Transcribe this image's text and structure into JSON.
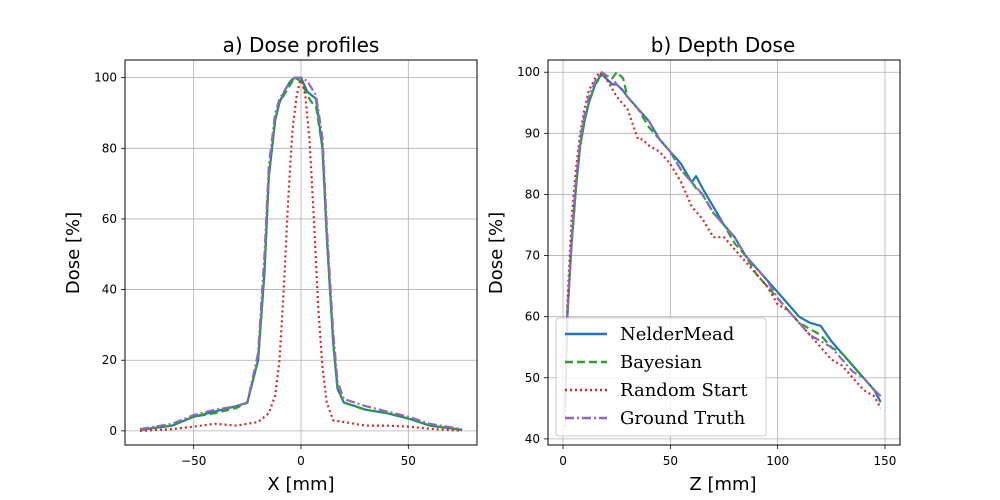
{
  "chart_data": [
    {
      "type": "line",
      "title": "a) Dose profiles",
      "xlabel": "X [mm]",
      "ylabel": "Dose [%]",
      "xlim": [
        -82,
        82
      ],
      "ylim": [
        -4,
        105
      ],
      "xticks": [
        -50,
        0,
        50
      ],
      "yticks": [
        0,
        20,
        40,
        60,
        80,
        100
      ],
      "grid": true,
      "series": [
        {
          "name": "NelderMead",
          "color": "#1f77b4",
          "dash": "solid",
          "x": [
            -75,
            -60,
            -50,
            -40,
            -30,
            -25,
            -20,
            -17,
            -15,
            -12,
            -10,
            -7,
            -5,
            -3,
            0,
            3,
            5,
            7,
            10,
            12,
            15,
            17,
            20,
            25,
            30,
            40,
            50,
            60,
            75
          ],
          "y": [
            0.3,
            1.5,
            4,
            5.5,
            7,
            8,
            20,
            45,
            72,
            88,
            93,
            97,
            99,
            100,
            100,
            96,
            95,
            94,
            80,
            55,
            25,
            12,
            8,
            7,
            6,
            5,
            3.5,
            1.5,
            0.3
          ]
        },
        {
          "name": "Bayesian",
          "color": "#2ca02c",
          "dash": "dashed",
          "x": [
            -75,
            -60,
            -50,
            -40,
            -30,
            -25,
            -20,
            -17,
            -15,
            -12,
            -10,
            -7,
            -5,
            -3,
            0,
            3,
            5,
            7,
            10,
            12,
            15,
            17,
            20,
            25,
            30,
            40,
            50,
            60,
            75
          ],
          "y": [
            0.3,
            1.5,
            4,
            5,
            6.5,
            8,
            20,
            45,
            72,
            88,
            93,
            96,
            98,
            100,
            99,
            95,
            93,
            92,
            80,
            55,
            25,
            12,
            8,
            7,
            6,
            5,
            3.5,
            1.5,
            0.3
          ]
        },
        {
          "name": "Random Start",
          "color": "#d62728",
          "dash": "dotted",
          "x": [
            -75,
            -60,
            -50,
            -40,
            -30,
            -25,
            -20,
            -15,
            -12,
            -10,
            -8,
            -6,
            -4,
            -2,
            0,
            2,
            4,
            6,
            8,
            10,
            12,
            15,
            20,
            25,
            30,
            40,
            50,
            60,
            75
          ],
          "y": [
            0,
            0.5,
            1.2,
            2,
            1.5,
            2,
            2.5,
            5,
            10,
            20,
            40,
            65,
            85,
            95,
            100,
            95,
            82,
            60,
            35,
            18,
            8,
            3,
            2.5,
            2,
            1.5,
            1.5,
            1.2,
            0.6,
            0
          ]
        },
        {
          "name": "Ground Truth",
          "color": "#9467bd",
          "dash": "dashdot",
          "x": [
            -75,
            -60,
            -50,
            -40,
            -30,
            -25,
            -20,
            -17,
            -15,
            -12,
            -10,
            -7,
            -5,
            -3,
            0,
            3,
            5,
            7,
            10,
            12,
            15,
            17,
            20,
            25,
            30,
            40,
            50,
            60,
            75
          ],
          "y": [
            0.5,
            2,
            4.5,
            6,
            7,
            8,
            22,
            50,
            75,
            90,
            94,
            97,
            99,
            100,
            100,
            99,
            97,
            95,
            83,
            58,
            28,
            14,
            9,
            8,
            7,
            5.5,
            4,
            2,
            0.5
          ]
        }
      ]
    },
    {
      "type": "line",
      "title": "b) Depth Dose",
      "xlabel": "Z [mm]",
      "ylabel": "Dose [%]",
      "xlim": [
        -7,
        157
      ],
      "ylim": [
        39,
        102
      ],
      "xticks": [
        0,
        50,
        100,
        150
      ],
      "yticks": [
        40,
        50,
        60,
        70,
        80,
        90,
        100
      ],
      "grid": true,
      "legend": {
        "position": "lower-left",
        "entries": [
          "NelderMead",
          "Bayesian",
          "Random Start",
          "Ground Truth"
        ]
      },
      "series": [
        {
          "name": "NelderMead",
          "color": "#1f77b4",
          "dash": "solid",
          "x": [
            1,
            2,
            4,
            6,
            8,
            10,
            12,
            15,
            18,
            20,
            23,
            25,
            28,
            30,
            35,
            40,
            45,
            50,
            55,
            60,
            62,
            65,
            70,
            75,
            80,
            85,
            90,
            95,
            100,
            105,
            110,
            115,
            120,
            125,
            130,
            135,
            140,
            145,
            148
          ],
          "y": [
            45,
            60,
            72,
            81,
            88,
            92,
            95,
            98,
            99.8,
            99,
            98,
            98,
            97,
            96,
            94,
            92,
            89,
            87,
            85,
            82,
            83,
            81,
            78,
            75,
            73,
            70,
            68,
            66,
            64,
            62,
            60,
            59,
            58.5,
            56,
            54,
            52,
            50,
            48,
            46
          ]
        },
        {
          "name": "Bayesian",
          "color": "#2ca02c",
          "dash": "dashed",
          "x": [
            1,
            2,
            4,
            6,
            8,
            10,
            12,
            15,
            18,
            20,
            23,
            25,
            28,
            30,
            35,
            40,
            45,
            50,
            55,
            60,
            62,
            65,
            70,
            75,
            80,
            85,
            90,
            95,
            100,
            105,
            110,
            115,
            120,
            125,
            130,
            135,
            140,
            145,
            148
          ],
          "y": [
            45,
            60,
            72,
            81,
            88,
            92,
            95,
            98,
            99.5,
            99.5,
            99,
            100,
            99,
            96,
            94,
            91,
            89,
            87,
            84,
            82,
            81,
            80,
            77,
            75,
            72,
            70,
            67,
            65,
            63,
            61,
            59,
            58,
            57,
            55,
            54,
            52,
            50,
            48,
            47
          ]
        },
        {
          "name": "Random Start",
          "color": "#d62728",
          "dash": "dotted",
          "x": [
            1,
            2,
            4,
            6,
            8,
            10,
            12,
            15,
            17,
            20,
            25,
            30,
            35,
            37,
            40,
            45,
            50,
            55,
            60,
            65,
            70,
            75,
            80,
            85,
            90,
            95,
            100,
            105,
            110,
            115,
            120,
            125,
            130,
            135,
            140,
            145,
            148
          ],
          "y": [
            42,
            62,
            76,
            84,
            90,
            94,
            97,
            99,
            100,
            99,
            96,
            94,
            89,
            89,
            88,
            87,
            85,
            82,
            78,
            76,
            73,
            73,
            71,
            69,
            67,
            65,
            62,
            61,
            59,
            57,
            55,
            53,
            52,
            50,
            48,
            47,
            45
          ]
        },
        {
          "name": "Ground Truth",
          "color": "#9467bd",
          "dash": "dashdot",
          "x": [
            1,
            2,
            4,
            6,
            8,
            10,
            12,
            15,
            18,
            20,
            23,
            25,
            28,
            30,
            35,
            40,
            45,
            50,
            55,
            60,
            65,
            70,
            75,
            80,
            85,
            90,
            95,
            100,
            105,
            110,
            115,
            120,
            125,
            130,
            135,
            140,
            145,
            148
          ],
          "y": [
            45,
            60,
            73,
            82,
            89,
            93,
            96,
            98.5,
            100,
            99.5,
            99,
            98,
            97,
            96,
            94,
            92,
            89,
            87,
            84,
            82,
            80,
            77,
            75,
            73,
            70,
            68,
            66,
            63,
            61,
            59,
            57,
            56,
            55,
            53,
            51,
            50,
            48,
            47
          ]
        }
      ]
    }
  ]
}
